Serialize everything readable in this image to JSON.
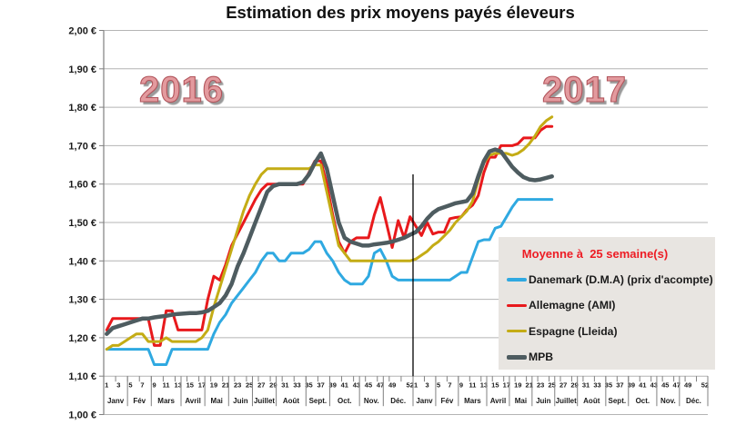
{
  "title": "Estimation des prix moyens payés éleveurs",
  "year_labels": [
    "2016",
    "2017"
  ],
  "legend": {
    "title": "Moyenne à  25 semaine(s)",
    "title_color": "#ed1c24"
  },
  "chart_data": {
    "type": "line",
    "title": "Estimation des prix moyens payés éleveurs",
    "ylim": [
      1.0,
      2.0
    ],
    "ytick_labels": [
      "2,00 €",
      "1,90 €",
      "1,80 €",
      "1,70 €",
      "1,60 €",
      "1,50 €",
      "1,40 €",
      "1,30 €",
      "1,20 €",
      "1,10 €",
      "1,00 €"
    ],
    "week_tick_labels": [
      1,
      3,
      5,
      7,
      9,
      11,
      13,
      15,
      17,
      19,
      21,
      23,
      25,
      27,
      29,
      31,
      33,
      35,
      37,
      39,
      41,
      43,
      45,
      47,
      49,
      52
    ],
    "months": [
      "Janv",
      "Fév",
      "Mars",
      "Avril",
      "Mai",
      "Juin",
      "Juillet",
      "Août",
      "Sept.",
      "Oct.",
      "Nov.",
      "Déc."
    ],
    "month_end_weeks": [
      4,
      8,
      13,
      17,
      21,
      25,
      29,
      34,
      38,
      43,
      47,
      52
    ],
    "grid": true,
    "separator_between_years": true,
    "series": [
      {
        "name": "Danemark (D.M.A) (prix d'acompte)",
        "color": "#2fa9e1",
        "width": 3,
        "values_2016": [
          1.17,
          1.17,
          1.17,
          1.17,
          1.17,
          1.17,
          1.17,
          1.17,
          1.13,
          1.13,
          1.13,
          1.17,
          1.17,
          1.17,
          1.17,
          1.17,
          1.17,
          1.17,
          1.21,
          1.24,
          1.26,
          1.29,
          1.31,
          1.33,
          1.35,
          1.37,
          1.4,
          1.42,
          1.42,
          1.4,
          1.4,
          1.42,
          1.42,
          1.42,
          1.43,
          1.45,
          1.45,
          1.42,
          1.4,
          1.37,
          1.35,
          1.34,
          1.34,
          1.34,
          1.36,
          1.42,
          1.43,
          1.4,
          1.36,
          1.35,
          1.35,
          1.35
        ],
        "values_2017": [
          1.35,
          1.35,
          1.35,
          1.35,
          1.35,
          1.35,
          1.35,
          1.36,
          1.37,
          1.37,
          1.41,
          1.45,
          1.455,
          1.455,
          1.485,
          1.49,
          1.515,
          1.54,
          1.56,
          1.56,
          1.56,
          1.56,
          1.56,
          1.56,
          1.56
        ]
      },
      {
        "name": "Allemagne (AMI)",
        "color": "#e8191c",
        "width": 3,
        "values_2016": [
          1.22,
          1.25,
          1.25,
          1.25,
          1.25,
          1.25,
          1.25,
          1.25,
          1.18,
          1.18,
          1.27,
          1.27,
          1.22,
          1.22,
          1.22,
          1.22,
          1.22,
          1.3,
          1.36,
          1.35,
          1.39,
          1.44,
          1.47,
          1.5,
          1.53,
          1.56,
          1.585,
          1.6,
          1.6,
          1.6,
          1.6,
          1.6,
          1.6,
          1.6,
          1.63,
          1.66,
          1.66,
          1.6,
          1.52,
          1.45,
          1.42,
          1.45,
          1.46,
          1.46,
          1.46,
          1.52,
          1.565,
          1.5,
          1.435,
          1.505,
          1.46,
          1.515
        ],
        "values_2017": [
          1.49,
          1.466,
          1.5,
          1.47,
          1.475,
          1.475,
          1.51,
          1.513,
          1.515,
          1.533,
          1.545,
          1.57,
          1.63,
          1.67,
          1.67,
          1.7,
          1.7,
          1.7,
          1.705,
          1.72,
          1.72,
          1.72,
          1.74,
          1.75,
          1.75
        ]
      },
      {
        "name": "Espagne (Lleida)",
        "color": "#c4ac15",
        "width": 3,
        "values_2016": [
          1.17,
          1.18,
          1.18,
          1.19,
          1.2,
          1.21,
          1.21,
          1.19,
          1.19,
          1.19,
          1.2,
          1.19,
          1.19,
          1.19,
          1.19,
          1.19,
          1.2,
          1.22,
          1.28,
          1.33,
          1.38,
          1.43,
          1.48,
          1.53,
          1.57,
          1.6,
          1.625,
          1.64,
          1.64,
          1.64,
          1.64,
          1.64,
          1.64,
          1.64,
          1.64,
          1.65,
          1.65,
          1.58,
          1.51,
          1.44,
          1.42,
          1.4,
          1.4,
          1.4,
          1.4,
          1.4,
          1.4,
          1.4,
          1.4,
          1.4,
          1.4,
          1.4
        ],
        "values_2017": [
          1.405,
          1.415,
          1.425,
          1.44,
          1.45,
          1.465,
          1.48,
          1.5,
          1.515,
          1.53,
          1.555,
          1.61,
          1.655,
          1.675,
          1.68,
          1.68,
          1.68,
          1.675,
          1.68,
          1.69,
          1.705,
          1.725,
          1.75,
          1.765,
          1.775
        ]
      },
      {
        "name": "MPB",
        "color": "#4e5c60",
        "width": 4.5,
        "values_2016": [
          1.21,
          1.225,
          1.23,
          1.235,
          1.24,
          1.245,
          1.25,
          1.25,
          1.253,
          1.255,
          1.257,
          1.26,
          1.262,
          1.263,
          1.264,
          1.264,
          1.266,
          1.27,
          1.28,
          1.29,
          1.31,
          1.34,
          1.385,
          1.42,
          1.46,
          1.5,
          1.54,
          1.58,
          1.595,
          1.6,
          1.6,
          1.6,
          1.6,
          1.605,
          1.625,
          1.655,
          1.68,
          1.64,
          1.57,
          1.5,
          1.46,
          1.45,
          1.445,
          1.44,
          1.44,
          1.443,
          1.445,
          1.447,
          1.45,
          1.455,
          1.46,
          1.468
        ],
        "values_2017": [
          1.475,
          1.49,
          1.51,
          1.525,
          1.535,
          1.54,
          1.545,
          1.55,
          1.553,
          1.556,
          1.575,
          1.62,
          1.66,
          1.685,
          1.69,
          1.685,
          1.665,
          1.645,
          1.63,
          1.618,
          1.612,
          1.61,
          1.612,
          1.616,
          1.62
        ]
      }
    ]
  }
}
